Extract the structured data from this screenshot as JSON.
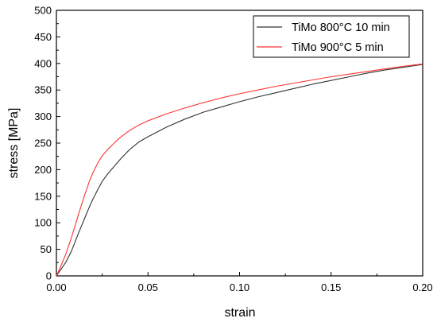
{
  "chart_data": {
    "type": "line",
    "title": "",
    "xlabel": "strain",
    "ylabel": "stress [MPa]",
    "xlim": [
      0,
      0.2
    ],
    "ylim": [
      0,
      500
    ],
    "xticks": [
      0,
      0.05,
      0.1,
      0.15,
      0.2
    ],
    "xtick_labels": [
      "0.00",
      "0.05",
      "0.10",
      "0.15",
      "0.20"
    ],
    "yticks": [
      0,
      50,
      100,
      150,
      200,
      250,
      300,
      350,
      400,
      450,
      500
    ],
    "ytick_labels": [
      "0",
      "50",
      "100",
      "150",
      "200",
      "250",
      "300",
      "350",
      "400",
      "450",
      "500"
    ],
    "grid": false,
    "legend_position": "top-right",
    "series": [
      {
        "name": "TiMo 800°C 10 min",
        "color": "#333333",
        "x": [
          0,
          0.002,
          0.005,
          0.008,
          0.01,
          0.012,
          0.015,
          0.018,
          0.02,
          0.023,
          0.025,
          0.028,
          0.03,
          0.033,
          0.035,
          0.04,
          0.045,
          0.05,
          0.06,
          0.07,
          0.08,
          0.09,
          0.1,
          0.11,
          0.12,
          0.13,
          0.14,
          0.15,
          0.16,
          0.17,
          0.18,
          0.19,
          0.2
        ],
        "y": [
          0,
          10,
          25,
          45,
          62,
          80,
          105,
          130,
          145,
          165,
          178,
          192,
          200,
          212,
          220,
          238,
          252,
          262,
          280,
          295,
          308,
          318,
          328,
          337,
          345,
          353,
          361,
          368,
          375,
          382,
          388,
          393,
          398
        ]
      },
      {
        "name": "TiMo 900°C 5 min",
        "color": "#ff3333",
        "x": [
          0,
          0.002,
          0.005,
          0.008,
          0.01,
          0.012,
          0.015,
          0.018,
          0.02,
          0.023,
          0.025,
          0.028,
          0.03,
          0.033,
          0.035,
          0.04,
          0.045,
          0.05,
          0.06,
          0.07,
          0.08,
          0.09,
          0.1,
          0.11,
          0.12,
          0.13,
          0.14,
          0.15,
          0.16,
          0.17,
          0.18,
          0.19,
          0.2
        ],
        "y": [
          0,
          15,
          40,
          70,
          92,
          115,
          148,
          178,
          195,
          215,
          226,
          238,
          245,
          255,
          261,
          274,
          284,
          292,
          305,
          316,
          326,
          335,
          343,
          350,
          357,
          363,
          369,
          375,
          380,
          385,
          390,
          395,
          399
        ]
      }
    ]
  }
}
